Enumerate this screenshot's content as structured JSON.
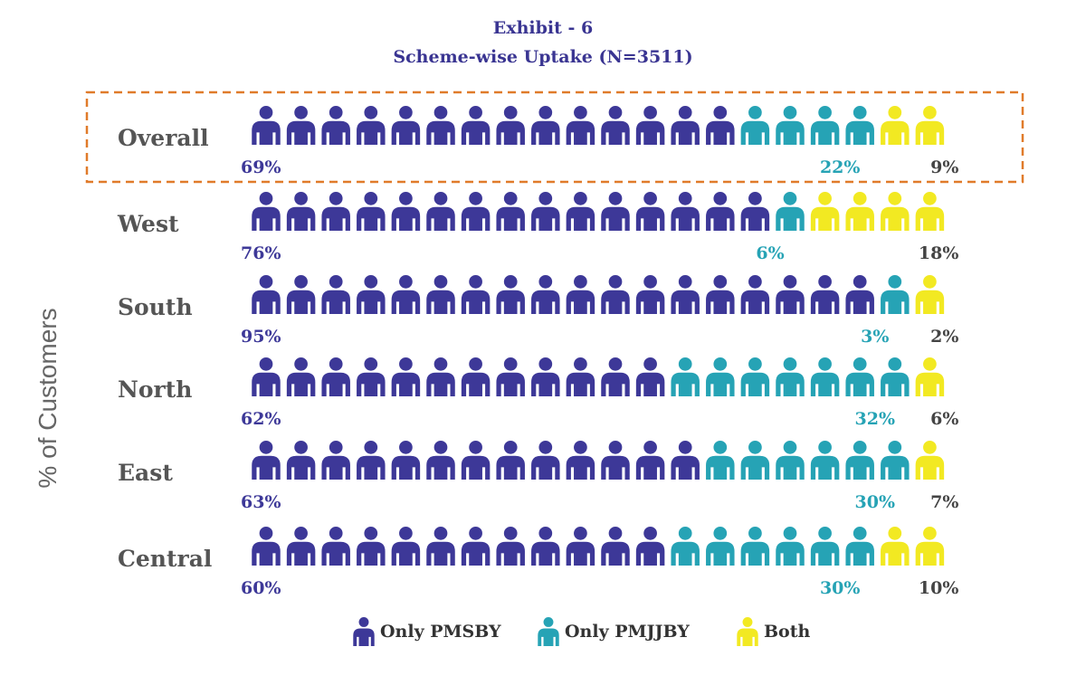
{
  "colors": {
    "only_pmsby": "#3d3898",
    "only_pmjjby": "#26a3b5",
    "both": "#f2e922",
    "highlight_border": "#e07b2a"
  },
  "icon": "person-icon",
  "chart_data": {
    "type": "pictogram",
    "title": "Exhibit - 6",
    "subtitle": "Scheme-wise Uptake (N=3511)",
    "ylabel": "% of Customers",
    "legend_position": "bottom",
    "series": [
      {
        "name": "Only PMSBY",
        "color_key": "only_pmsby"
      },
      {
        "name": "Only PMJJBY",
        "color_key": "only_pmjjby"
      },
      {
        "name": "Both",
        "color_key": "both"
      }
    ],
    "highlighted_row": "Overall",
    "rows": [
      {
        "label": "Overall",
        "values": [
          69,
          22,
          9
        ],
        "value_labels": [
          "69%",
          "22%",
          "9%"
        ],
        "icons": [
          14,
          4,
          2
        ]
      },
      {
        "label": "West",
        "values": [
          76,
          6,
          18
        ],
        "value_labels": [
          "76%",
          "6%",
          "18%"
        ],
        "icons": [
          15,
          1,
          4
        ]
      },
      {
        "label": "South",
        "values": [
          95,
          3,
          2
        ],
        "value_labels": [
          "95%",
          "3%",
          "2%"
        ],
        "icons": [
          18,
          1,
          1
        ]
      },
      {
        "label": "North",
        "values": [
          62,
          32,
          6
        ],
        "value_labels": [
          "62%",
          "32%",
          "6%"
        ],
        "icons": [
          12,
          7,
          1
        ]
      },
      {
        "label": "East",
        "values": [
          63,
          30,
          7
        ],
        "value_labels": [
          "63%",
          "30%",
          "7%"
        ],
        "icons": [
          13,
          6,
          1
        ]
      },
      {
        "label": "Central",
        "values": [
          60,
          30,
          10
        ],
        "value_labels": [
          "60%",
          "30%",
          "10%"
        ],
        "icons": [
          12,
          6,
          2
        ]
      }
    ]
  }
}
